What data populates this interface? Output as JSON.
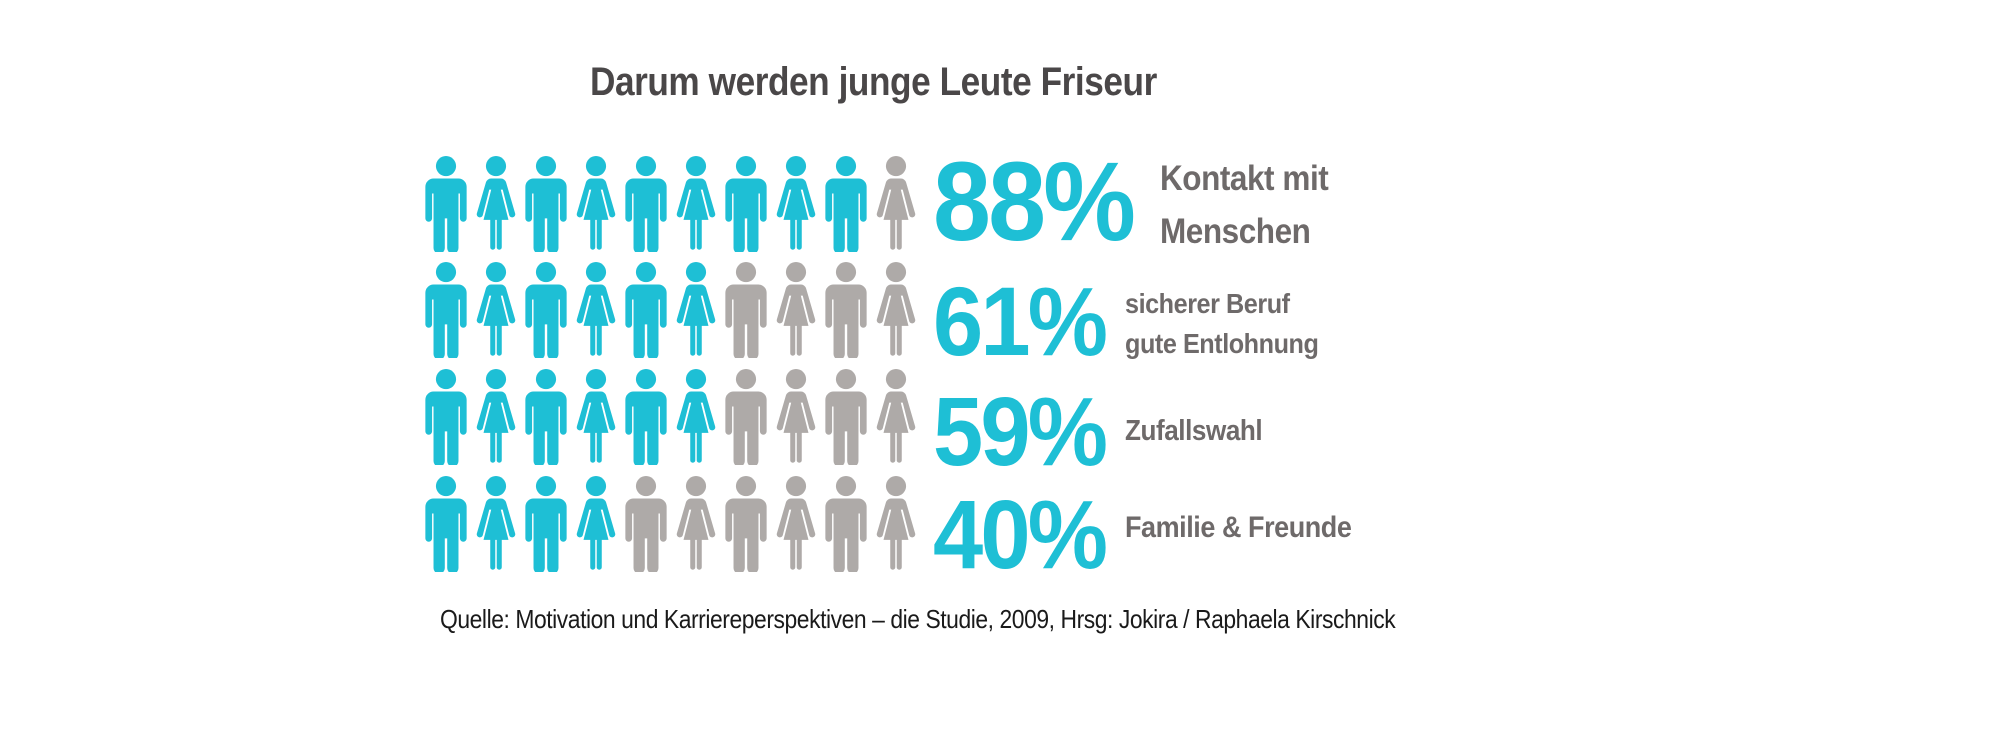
{
  "title": "Darum werden junge Leute Friseur",
  "source": "Quelle: Motivation und Karriereperspektiven – die Studie, 2009, Hrsg: Jokira / Raphaela Kirschnick",
  "colors": {
    "accent_cyan": "#1ebfd5",
    "icon_gray": "#aeaaa8",
    "label_gray": "#6e6a6a",
    "title_gray": "#4a4748"
  },
  "chart_data": {
    "type": "pictogram",
    "title": "Darum werden junge Leute Friseur",
    "icons_per_row": 10,
    "icon_unit_percent": 10,
    "icon_pattern": "alternating male/female person icons, starting with male",
    "legend": "filled cyan icon = share of respondents, gray icon = remainder",
    "rows": [
      {
        "pct": "88%",
        "value": 88,
        "filled_icons": 9,
        "label": "Kontakt mit Menschen",
        "label_lines": [
          "Kontakt mit",
          "Menschen"
        ]
      },
      {
        "pct": "61%",
        "value": 61,
        "filled_icons": 6,
        "label": "sicherer Beruf gute Entlohnung",
        "label_lines": [
          "sicherer Beruf",
          "gute Entlohnung"
        ]
      },
      {
        "pct": "59%",
        "value": 59,
        "filled_icons": 6,
        "label": "Zufallswahl",
        "label_lines": [
          "Zufallswahl"
        ]
      },
      {
        "pct": "40%",
        "value": 40,
        "filled_icons": 4,
        "label": "Familie & Freunde",
        "label_lines": [
          "Familie & Freunde"
        ]
      }
    ]
  }
}
